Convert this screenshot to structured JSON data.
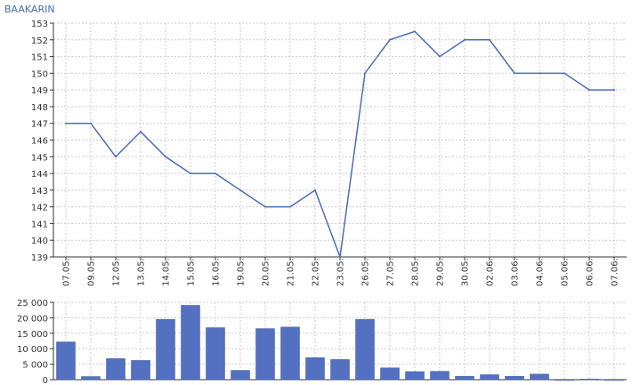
{
  "ticker": "BAAKARIN",
  "colors": {
    "line": "#4a6db5",
    "bar_fill": "#5470c0",
    "bar_stroke": "#3e5aa0",
    "grid": "#cccccc",
    "axis": "#333333",
    "ticker": "#4a6db5"
  },
  "chart_data": [
    {
      "type": "line",
      "title": "",
      "x": [
        "07.05.",
        "09.05.",
        "12.05.",
        "13.05.",
        "14.05.",
        "15.05.",
        "16.05.",
        "19.05.",
        "20.05.",
        "21.05.",
        "22.05.",
        "23.05.",
        "26.05.",
        "27.05.",
        "28.05.",
        "29.05.",
        "30.05.",
        "02.06.",
        "03.06.",
        "04.06.",
        "05.06.",
        "06.06.",
        "07.06."
      ],
      "values": [
        147,
        147,
        145,
        146.5,
        145,
        144,
        144,
        143,
        142,
        142,
        143,
        139,
        150,
        152,
        152.5,
        151,
        152,
        152,
        150,
        150,
        150,
        149,
        149
      ],
      "ylim": [
        139,
        153
      ],
      "yticks": [
        139,
        140,
        141,
        142,
        143,
        144,
        145,
        146,
        147,
        148,
        149,
        150,
        151,
        152,
        153
      ],
      "ytick_labels": [
        "139",
        "140",
        "141",
        "142",
        "143",
        "144",
        "145",
        "146",
        "147",
        "148",
        "149",
        "150",
        "151",
        "152",
        "153"
      ],
      "grid": true
    },
    {
      "type": "bar",
      "title": "",
      "categories": [
        "07.05.",
        "09.05.",
        "12.05.",
        "13.05.",
        "14.05.",
        "15.05.",
        "16.05.",
        "19.05.",
        "20.05.",
        "21.05.",
        "22.05.",
        "23.05.",
        "26.05.",
        "27.05.",
        "28.05.",
        "29.05.",
        "30.05.",
        "02.06.",
        "03.06.",
        "04.06.",
        "05.06.",
        "06.06.",
        "07.06."
      ],
      "values": [
        12200,
        1000,
        6800,
        6200,
        19500,
        24000,
        16800,
        3000,
        16500,
        17000,
        7100,
        6500,
        19500,
        3800,
        2600,
        2700,
        1100,
        1600,
        1100,
        1800,
        0,
        200,
        0
      ],
      "ylim": [
        0,
        25000
      ],
      "yticks": [
        0,
        5000,
        10000,
        15000,
        20000,
        25000
      ],
      "ytick_labels": [
        "0",
        "5 000",
        "10 000",
        "15 000",
        "20 000",
        "25 000"
      ],
      "grid": true
    }
  ]
}
